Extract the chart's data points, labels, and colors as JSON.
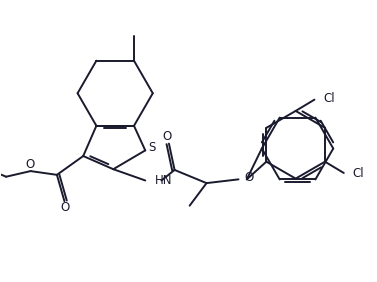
{
  "background_color": "#ffffff",
  "line_color": "#1a1a2e",
  "bond_width": 1.4,
  "font_size": 8.5,
  "figsize": [
    3.77,
    2.82
  ],
  "dpi": 100,
  "xlim": [
    0,
    10
  ],
  "ylim": [
    0,
    7.5
  ]
}
